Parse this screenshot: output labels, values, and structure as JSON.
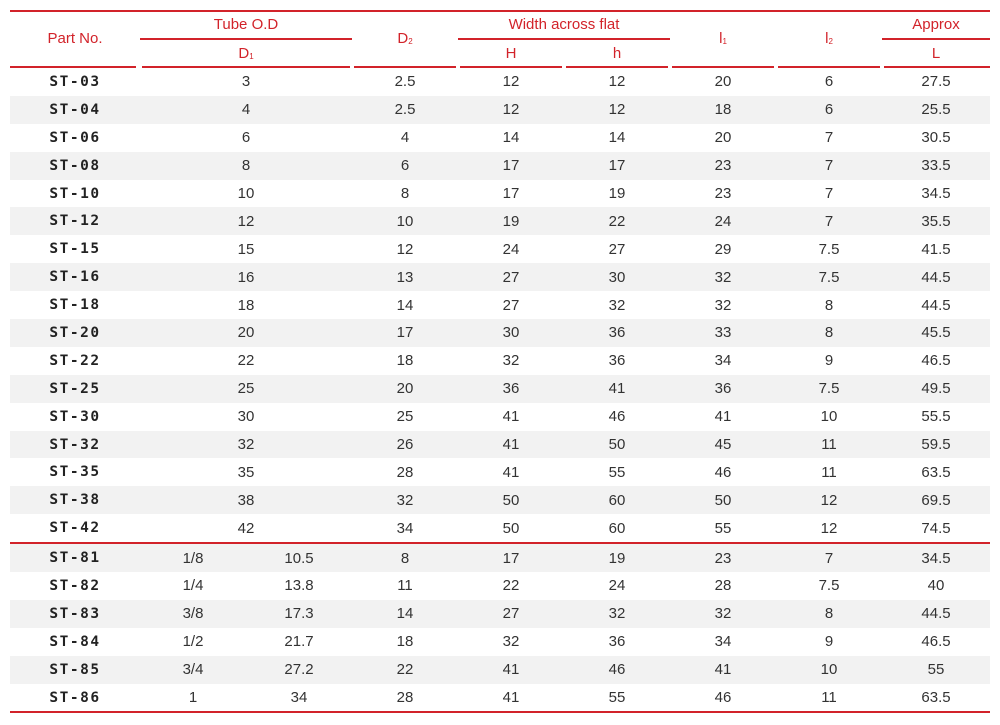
{
  "header": {
    "part_no": "Part No.",
    "tube_od": "Tube O.D",
    "d1": "D",
    "d1_sub": "1",
    "d2": "D",
    "d2_sub": "2",
    "width_across_flat": "Width across flat",
    "H": "H",
    "h": "h",
    "l1": "l",
    "l1_sub": "1",
    "l2": "l",
    "l2_sub": "2",
    "approx": "Approx",
    "L": "L"
  },
  "metric_rows": [
    {
      "part": "ST-03",
      "d1": "3",
      "d2": "2.5",
      "H": "12",
      "h": "12",
      "l1": "20",
      "l2": "6",
      "L": "27.5"
    },
    {
      "part": "ST-04",
      "d1": "4",
      "d2": "2.5",
      "H": "12",
      "h": "12",
      "l1": "18",
      "l2": "6",
      "L": "25.5"
    },
    {
      "part": "ST-06",
      "d1": "6",
      "d2": "4",
      "H": "14",
      "h": "14",
      "l1": "20",
      "l2": "7",
      "L": "30.5"
    },
    {
      "part": "ST-08",
      "d1": "8",
      "d2": "6",
      "H": "17",
      "h": "17",
      "l1": "23",
      "l2": "7",
      "L": "33.5"
    },
    {
      "part": "ST-10",
      "d1": "10",
      "d2": "8",
      "H": "17",
      "h": "19",
      "l1": "23",
      "l2": "7",
      "L": "34.5"
    },
    {
      "part": "ST-12",
      "d1": "12",
      "d2": "10",
      "H": "19",
      "h": "22",
      "l1": "24",
      "l2": "7",
      "L": "35.5"
    },
    {
      "part": "ST-15",
      "d1": "15",
      "d2": "12",
      "H": "24",
      "h": "27",
      "l1": "29",
      "l2": "7.5",
      "L": "41.5"
    },
    {
      "part": "ST-16",
      "d1": "16",
      "d2": "13",
      "H": "27",
      "h": "30",
      "l1": "32",
      "l2": "7.5",
      "L": "44.5"
    },
    {
      "part": "ST-18",
      "d1": "18",
      "d2": "14",
      "H": "27",
      "h": "32",
      "l1": "32",
      "l2": "8",
      "L": "44.5"
    },
    {
      "part": "ST-20",
      "d1": "20",
      "d2": "17",
      "H": "30",
      "h": "36",
      "l1": "33",
      "l2": "8",
      "L": "45.5"
    },
    {
      "part": "ST-22",
      "d1": "22",
      "d2": "18",
      "H": "32",
      "h": "36",
      "l1": "34",
      "l2": "9",
      "L": "46.5"
    },
    {
      "part": "ST-25",
      "d1": "25",
      "d2": "20",
      "H": "36",
      "h": "41",
      "l1": "36",
      "l2": "7.5",
      "L": "49.5"
    },
    {
      "part": "ST-30",
      "d1": "30",
      "d2": "25",
      "H": "41",
      "h": "46",
      "l1": "41",
      "l2": "10",
      "L": "55.5"
    },
    {
      "part": "ST-32",
      "d1": "32",
      "d2": "26",
      "H": "41",
      "h": "50",
      "l1": "45",
      "l2": "11",
      "L": "59.5"
    },
    {
      "part": "ST-35",
      "d1": "35",
      "d2": "28",
      "H": "41",
      "h": "55",
      "l1": "46",
      "l2": "11",
      "L": "63.5"
    },
    {
      "part": "ST-38",
      "d1": "38",
      "d2": "32",
      "H": "50",
      "h": "60",
      "l1": "50",
      "l2": "12",
      "L": "69.5"
    },
    {
      "part": "ST-42",
      "d1": "42",
      "d2": "34",
      "H": "50",
      "h": "60",
      "l1": "55",
      "l2": "12",
      "L": "74.5"
    }
  ],
  "inch_rows": [
    {
      "part": "ST-81",
      "inch": "1/8",
      "mm": "10.5",
      "d2": "8",
      "H": "17",
      "h": "19",
      "l1": "23",
      "l2": "7",
      "L": "34.5"
    },
    {
      "part": "ST-82",
      "inch": "1/4",
      "mm": "13.8",
      "d2": "11",
      "H": "22",
      "h": "24",
      "l1": "28",
      "l2": "7.5",
      "L": "40"
    },
    {
      "part": "ST-83",
      "inch": "3/8",
      "mm": "17.3",
      "d2": "14",
      "H": "27",
      "h": "32",
      "l1": "32",
      "l2": "8",
      "L": "44.5"
    },
    {
      "part": "ST-84",
      "inch": "1/2",
      "mm": "21.7",
      "d2": "18",
      "H": "32",
      "h": "36",
      "l1": "34",
      "l2": "9",
      "L": "46.5"
    },
    {
      "part": "ST-85",
      "inch": "3/4",
      "mm": "27.2",
      "d2": "22",
      "H": "41",
      "h": "46",
      "l1": "41",
      "l2": "10",
      "L": "55"
    },
    {
      "part": "ST-86",
      "inch": "1",
      "mm": "34",
      "d2": "28",
      "H": "41",
      "h": "55",
      "l1": "46",
      "l2": "11",
      "L": "63.5"
    }
  ],
  "colors": {
    "accent": "#d2232a",
    "stripe": "#f2f2f2",
    "text": "#333333"
  }
}
